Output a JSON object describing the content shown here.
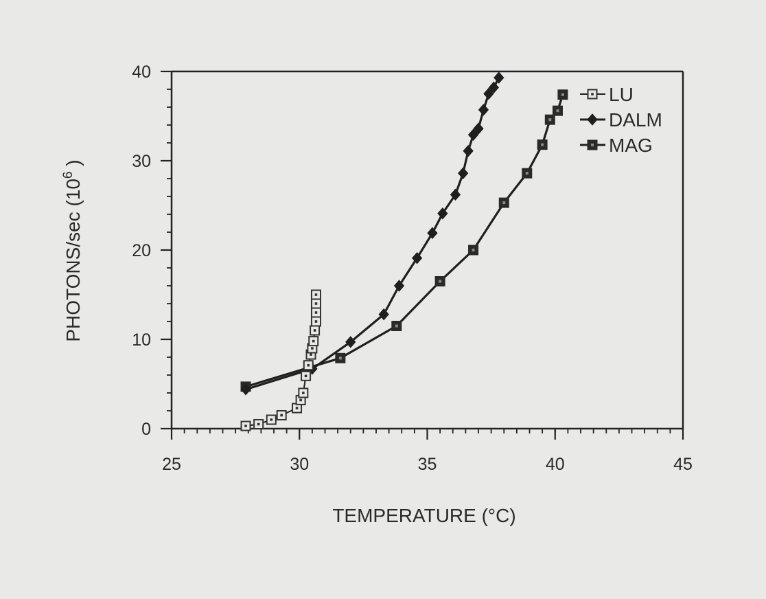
{
  "chart_data": {
    "type": "scatter",
    "xlabel": "TEMPERATURE (°C)",
    "ylabel": {
      "main": "PHOTONS/sec (10",
      "sup": "6",
      "end": " )"
    },
    "xlim": [
      25,
      45
    ],
    "ylim": [
      0,
      40
    ],
    "x_ticks": [
      25,
      30,
      35,
      40,
      45
    ],
    "y_ticks": [
      0,
      10,
      20,
      30,
      40
    ],
    "x_minor_step": 0.5,
    "y_minor_step": 2,
    "grid": false,
    "legend_position": "top-right",
    "series": [
      {
        "name": "LU",
        "marker": "open-square",
        "connected": true,
        "points": [
          [
            27.9,
            0.3
          ],
          [
            28.4,
            0.5
          ],
          [
            28.9,
            1.0
          ],
          [
            29.3,
            1.5
          ],
          [
            29.9,
            2.3
          ],
          [
            30.05,
            3.2
          ],
          [
            30.15,
            4.0
          ],
          [
            30.25,
            5.9
          ],
          [
            30.35,
            7.1
          ],
          [
            30.45,
            8.3
          ],
          [
            30.5,
            9.0
          ],
          [
            30.55,
            9.8
          ],
          [
            30.6,
            11.0
          ],
          [
            30.65,
            12.0
          ],
          [
            30.65,
            13.0
          ],
          [
            30.65,
            14.0
          ],
          [
            30.65,
            15.0
          ]
        ]
      },
      {
        "name": "DALM",
        "marker": "filled-diamond",
        "connected": true,
        "points": [
          [
            27.9,
            4.4
          ],
          [
            30.5,
            6.7
          ],
          [
            32.0,
            9.7
          ],
          [
            33.3,
            12.8
          ],
          [
            33.9,
            16.0
          ],
          [
            34.6,
            19.1
          ],
          [
            35.2,
            21.9
          ],
          [
            35.6,
            24.1
          ],
          [
            36.1,
            26.2
          ],
          [
            36.4,
            28.6
          ],
          [
            36.6,
            31.1
          ],
          [
            36.8,
            32.9
          ],
          [
            37.0,
            33.6
          ],
          [
            37.2,
            35.7
          ],
          [
            37.4,
            37.5
          ],
          [
            37.6,
            38.2
          ],
          [
            37.8,
            39.3
          ]
        ]
      },
      {
        "name": "MAG",
        "marker": "filled-square",
        "connected": true,
        "points": [
          [
            27.9,
            4.7
          ],
          [
            31.6,
            7.9
          ],
          [
            33.8,
            11.5
          ],
          [
            35.5,
            16.5
          ],
          [
            36.8,
            20.0
          ],
          [
            38.0,
            25.3
          ],
          [
            38.9,
            28.6
          ],
          [
            39.5,
            31.8
          ],
          [
            39.8,
            34.6
          ],
          [
            40.1,
            35.6
          ],
          [
            40.3,
            37.4
          ]
        ]
      }
    ]
  }
}
